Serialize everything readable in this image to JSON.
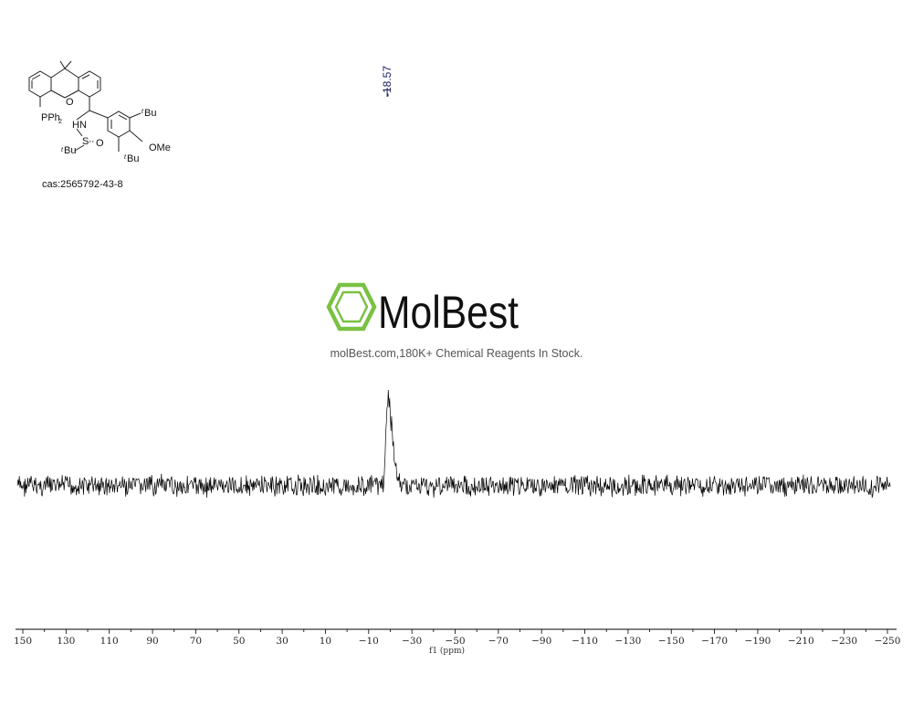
{
  "compound": {
    "cas_label": "cas:2565792-43-8",
    "structure_labels": [
      "PPh2",
      "O",
      "HN",
      "S",
      "O",
      "tBu",
      "tBu",
      "tBu",
      "OMe"
    ]
  },
  "peak_label": "-18.57",
  "watermark": {
    "brand": "MolBest",
    "tagline": "molBest.com,180K+ Chemical Reagents In Stock.",
    "logo_color": "#7ac143"
  },
  "chart_data": {
    "type": "line",
    "title": "",
    "xlabel": "f1 (ppm)",
    "ylabel": "",
    "xlim": [
      150,
      -250
    ],
    "x_reversed": true,
    "x_ticks": [
      150,
      130,
      110,
      90,
      70,
      50,
      30,
      10,
      -10,
      -30,
      -50,
      -70,
      -90,
      -110,
      -130,
      -150,
      -170,
      -190,
      -210,
      -230,
      -250
    ],
    "x_tick_labels": [
      "150",
      "130",
      "110",
      "90",
      "70",
      "50",
      "30",
      "10",
      "−10",
      "−30",
      "−50",
      "−70",
      "−90",
      "−110",
      "−130",
      "−150",
      "−170",
      "−190",
      "−210",
      "−230",
      "−250"
    ],
    "peaks": [
      {
        "ppm": -18.57,
        "relative_height": 1.0
      }
    ],
    "noise_level": 0.25,
    "line_color": "#000000",
    "grid": false
  }
}
